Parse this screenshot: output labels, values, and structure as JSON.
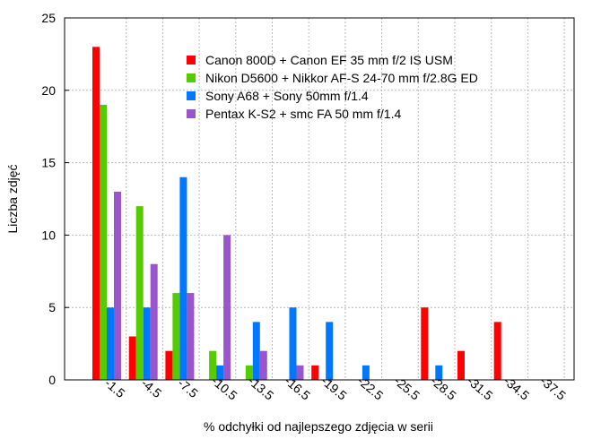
{
  "chart_data": {
    "type": "bar",
    "xlabel": "% odchyłki od najlepszego zdjęcia w serii",
    "ylabel": "Liczba zdjęć",
    "ylim": [
      0,
      25
    ],
    "yticks": [
      0,
      5,
      10,
      15,
      20,
      25
    ],
    "grid": true,
    "legend_position": "top-right",
    "categories": [
      "-1.5",
      "-4.5",
      "-7.5",
      "-10.5",
      "-13.5",
      "-16.5",
      "-19.5",
      "-22.5",
      "-25.5",
      "-28.5",
      "-31.5",
      "-34.5",
      "-37.5"
    ],
    "series": [
      {
        "name": "Canon 800D + Canon EF 35 mm f/2 IS USM",
        "color": "#ff0000",
        "values": [
          23,
          3,
          2,
          0,
          0,
          0,
          1,
          0,
          0,
          5,
          2,
          4,
          0
        ]
      },
      {
        "name": "Nikon D5600 + Nikkor AF-S 24-70 mm f/2.8G ED",
        "color": "#55cc00",
        "values": [
          19,
          12,
          6,
          2,
          1,
          0,
          0,
          0,
          0,
          0,
          0,
          0,
          0
        ]
      },
      {
        "name": "Sony A68 + Sony 50mm f/1.4",
        "color": "#0077ff",
        "values": [
          5,
          5,
          14,
          1,
          4,
          5,
          4,
          1,
          0,
          1,
          0,
          0,
          0
        ]
      },
      {
        "name": "Pentax K-S2 + smc FA 50 mm f/1.4",
        "color": "#9955cc",
        "values": [
          13,
          8,
          6,
          10,
          2,
          1,
          0,
          0,
          0,
          0,
          0,
          0,
          0
        ]
      }
    ]
  }
}
